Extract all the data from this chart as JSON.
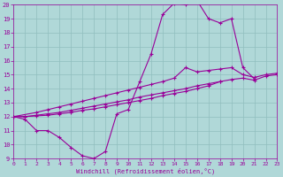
{
  "xlabel": "Windchill (Refroidissement éolien,°C)",
  "xlim": [
    0,
    23
  ],
  "ylim": [
    9,
    20
  ],
  "xticks": [
    0,
    1,
    2,
    3,
    4,
    5,
    6,
    7,
    8,
    9,
    10,
    11,
    12,
    13,
    14,
    15,
    16,
    17,
    18,
    19,
    20,
    21,
    22,
    23
  ],
  "yticks": [
    9,
    10,
    11,
    12,
    13,
    14,
    15,
    16,
    17,
    18,
    19,
    20
  ],
  "line_color": "#990099",
  "bg_color": "#b0d8d8",
  "grid_color": "#90bebe",
  "line1_x": [
    0,
    1,
    2,
    3,
    4,
    5,
    6,
    7,
    8,
    9,
    10,
    11,
    12,
    13,
    14,
    15,
    16,
    17,
    18,
    19,
    20,
    21
  ],
  "line1_y": [
    12,
    11.8,
    11.0,
    11.0,
    10.5,
    9.8,
    9.2,
    9.0,
    9.5,
    12.2,
    12.5,
    14.5,
    16.5,
    19.3,
    20.1,
    20.0,
    20.3,
    19.0,
    18.7,
    19.0,
    15.5,
    14.7
  ],
  "line2_x": [
    0,
    2,
    3,
    4,
    5,
    6,
    7,
    8,
    9,
    10,
    11,
    12,
    13,
    14,
    15,
    16,
    17,
    18,
    19,
    20,
    21,
    22,
    23
  ],
  "line2_y": [
    12,
    12.3,
    12.5,
    12.7,
    12.9,
    13.1,
    13.3,
    13.5,
    13.7,
    13.9,
    14.1,
    14.3,
    14.5,
    14.75,
    15.5,
    15.2,
    15.3,
    15.4,
    15.5,
    15.0,
    14.8,
    15.0,
    15.1
  ],
  "line3_x": [
    0,
    1,
    2,
    3,
    4,
    5,
    6,
    7,
    8,
    9,
    10,
    11,
    12,
    13,
    14,
    15,
    16,
    17,
    18,
    19,
    20,
    21,
    22,
    23
  ],
  "line3_y": [
    12,
    12.0,
    12.1,
    12.2,
    12.3,
    12.45,
    12.6,
    12.75,
    12.9,
    13.05,
    13.2,
    13.4,
    13.55,
    13.7,
    13.85,
    14.0,
    14.2,
    14.35,
    14.5,
    14.65,
    14.75,
    14.6,
    14.9,
    15.0
  ],
  "line4_x": [
    0,
    1,
    2,
    3,
    4,
    5,
    6,
    7,
    8,
    9,
    10,
    11,
    12,
    13,
    14,
    15,
    16,
    17,
    18
  ],
  "line4_y": [
    12,
    12.0,
    12.05,
    12.1,
    12.2,
    12.3,
    12.45,
    12.55,
    12.7,
    12.85,
    13.0,
    13.15,
    13.3,
    13.5,
    13.65,
    13.8,
    14.0,
    14.2,
    14.5
  ]
}
